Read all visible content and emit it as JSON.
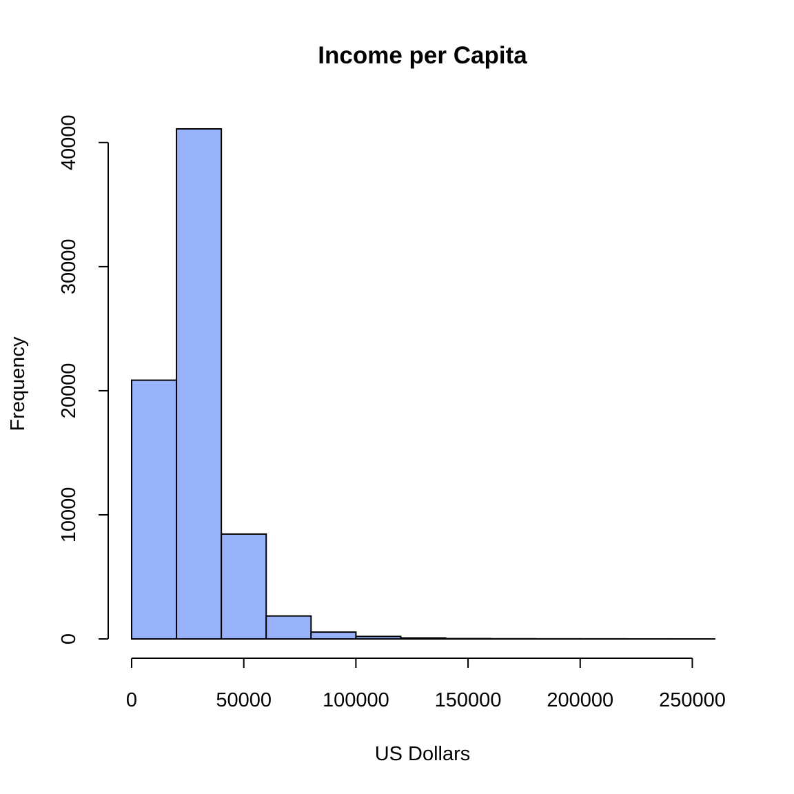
{
  "chart_data": {
    "type": "bar",
    "title": "Income per Capita",
    "xlabel": "US Dollars",
    "ylabel": "Frequency",
    "bin_edges": [
      0,
      20000,
      40000,
      60000,
      80000,
      100000,
      120000,
      140000,
      160000,
      180000,
      200000,
      220000,
      240000,
      260000
    ],
    "values": [
      20850,
      41100,
      8450,
      1850,
      550,
      200,
      80,
      30,
      15,
      8,
      5,
      3,
      2
    ],
    "xlim": [
      0,
      260000
    ],
    "ylim": [
      0,
      41100
    ],
    "x_ticks": [
      0,
      50000,
      100000,
      150000,
      200000,
      250000
    ],
    "x_tick_labels": [
      "0",
      "50000",
      "100000",
      "150000",
      "200000",
      "250000"
    ],
    "y_ticks": [
      0,
      10000,
      20000,
      30000,
      40000
    ],
    "y_tick_labels": [
      "0",
      "10000",
      "20000",
      "30000",
      "40000"
    ],
    "bar_color": "#99b3fb",
    "grid": false,
    "legend": "none"
  }
}
